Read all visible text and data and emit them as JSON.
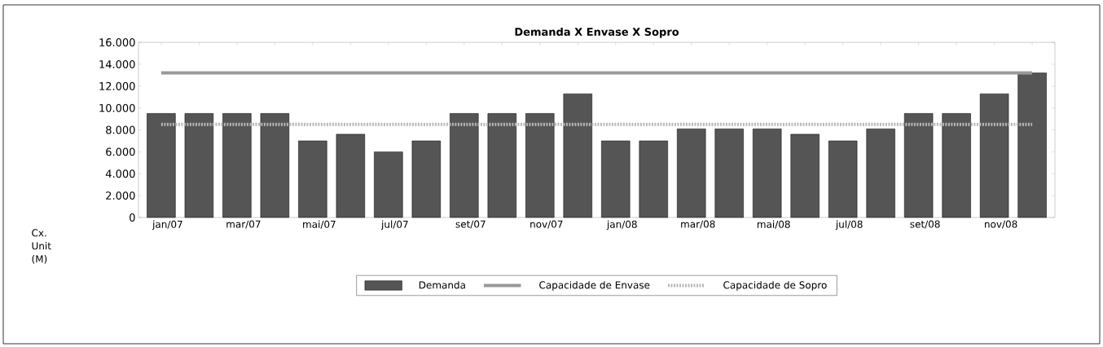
{
  "chart_data": {
    "type": "bar",
    "title": "Demanda X Envase X Sopro",
    "ylabel": "Cx. Unit (M)",
    "categories": [
      "jan/07",
      null,
      "mar/07",
      null,
      "mai/07",
      null,
      "jul/07",
      null,
      "set/07",
      null,
      "nov/07",
      null,
      "jan/08",
      null,
      "mar/08",
      null,
      "mai/08",
      null,
      "jul/08",
      null,
      "set/08",
      null,
      "nov/08",
      null
    ],
    "series": [
      {
        "name": "Demanda",
        "color": "#555555",
        "values": [
          9500,
          9500,
          9500,
          9500,
          7000,
          7600,
          6000,
          7000,
          9500,
          9500,
          9500,
          11300,
          7000,
          7000,
          8100,
          8100,
          8100,
          7600,
          7000,
          8100,
          9500,
          9500,
          11300,
          13200
        ]
      },
      {
        "name": "Capacidade de Envase",
        "type": "line",
        "color": "#999999",
        "line_style": "solid",
        "values": [
          13200,
          13200,
          13200,
          13200,
          13200,
          13200,
          13200,
          13200,
          13200,
          13200,
          13200,
          13200,
          13200,
          13200,
          13200,
          13200,
          13200,
          13200,
          13200,
          13200,
          13200,
          13200,
          13200,
          13200
        ]
      },
      {
        "name": "Capacidade de Sopro",
        "type": "line",
        "color": "#b8b8b8",
        "line_style": "dotted",
        "values": [
          8500,
          8500,
          8500,
          8500,
          8500,
          8500,
          8500,
          8500,
          8500,
          8500,
          8500,
          8500,
          8500,
          8500,
          8500,
          8500,
          8500,
          8500,
          8500,
          8500,
          8500,
          8500,
          8500,
          8500
        ]
      }
    ],
    "ylim": [
      0,
      16000
    ],
    "yticks": [
      0,
      {
        "value": 2000,
        "label": "2.000"
      },
      {
        "value": 4000,
        "label": "4.000"
      },
      {
        "value": 6000,
        "label": "6.000"
      },
      {
        "value": 8000,
        "label": "8.000"
      },
      {
        "value": 10000,
        "label": "10.000"
      },
      {
        "value": 12000,
        "label": "12.000"
      },
      {
        "value": 14000,
        "label": "14.000"
      },
      {
        "value": 16000,
        "label": "16.000"
      }
    ],
    "grid": false,
    "legend": "bottom",
    "marker": "none"
  }
}
